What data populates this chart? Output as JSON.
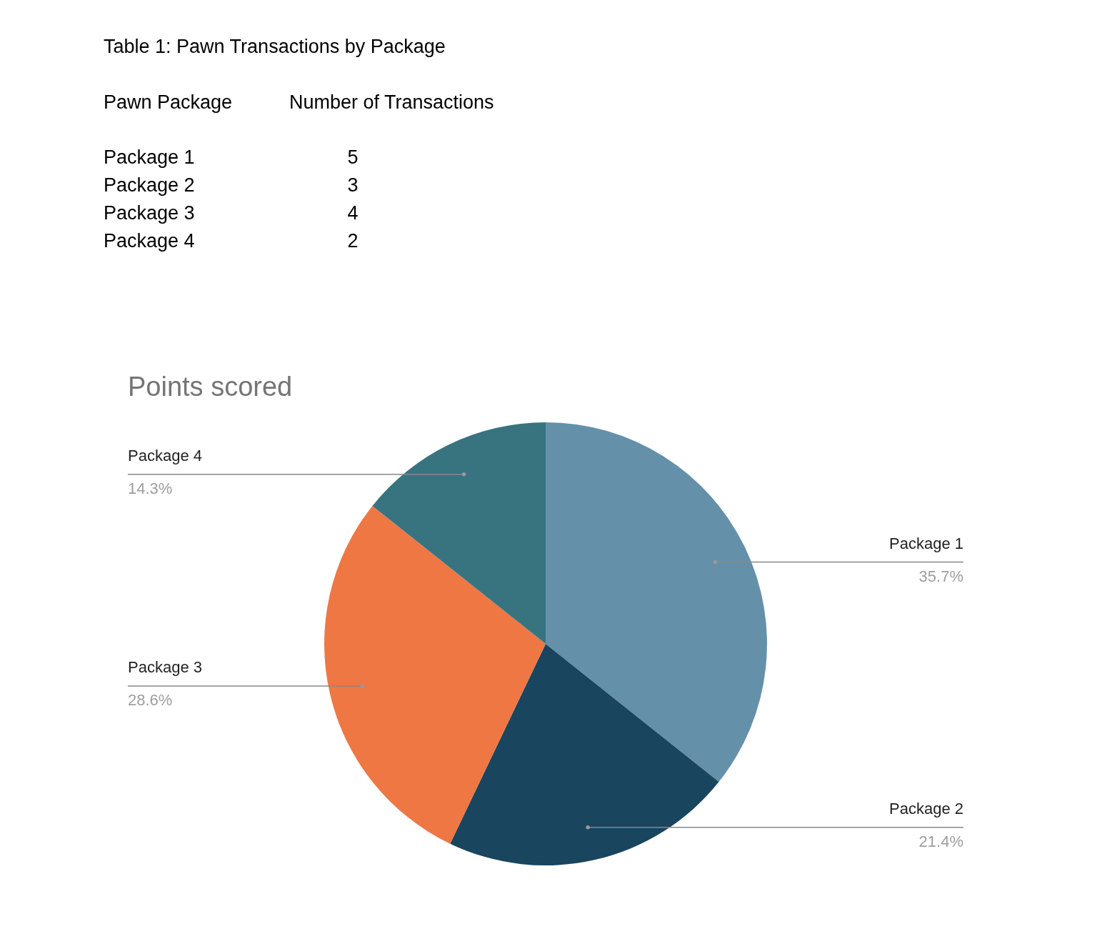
{
  "chart_data": {
    "type": "pie",
    "title": "Points scored",
    "categories": [
      "Package 1",
      "Package 2",
      "Package 3",
      "Package 4"
    ],
    "values": [
      35.7,
      21.4,
      28.6,
      14.3
    ],
    "value_labels": [
      "35.7%",
      "21.4%",
      "28.6%",
      "14.3%"
    ],
    "colors": [
      "#6590aa",
      "#19455e",
      "#ee7744",
      "#387380"
    ],
    "annotations": [
      "Table 1: Pawn Transactions by Package",
      "Pawn Package",
      "Number of Transactions",
      "Package 1",
      "5",
      "Package 2",
      "3",
      "Package 3",
      "4",
      "Package 4",
      "2"
    ]
  }
}
